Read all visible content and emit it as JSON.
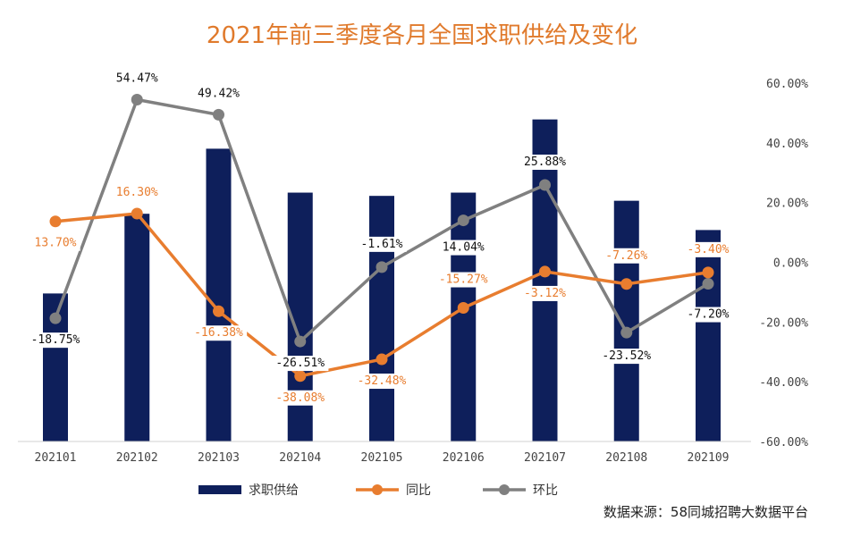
{
  "chart_data": {
    "type": "bar+line",
    "title": "2021年前三季度各月全国求职供给及变化",
    "categories": [
      "202101",
      "202102",
      "202103",
      "202104",
      "202105",
      "202106",
      "202107",
      "202108",
      "202109"
    ],
    "bar_series": {
      "name": "求职供给",
      "color": "#0e1f5b",
      "values": [
        0.455,
        0.7,
        0.9,
        0.765,
        0.755,
        0.765,
        0.99,
        0.74,
        0.65
      ]
    },
    "line_series": [
      {
        "name": "同比",
        "color": "#e87d2f",
        "values": [
          13.7,
          16.3,
          -16.38,
          -38.08,
          -32.48,
          -15.27,
          -3.12,
          -7.26,
          -3.4
        ],
        "labels": [
          "13.70%",
          "16.30%",
          "-16.38%",
          "-38.08%",
          "-32.48%",
          "-15.27%",
          "-3.12%",
          "-7.26%",
          "-3.40%"
        ]
      },
      {
        "name": "环比",
        "color": "#808080",
        "values": [
          -18.75,
          54.47,
          49.42,
          -26.51,
          -1.61,
          14.04,
          25.88,
          -23.52,
          -7.2
        ],
        "labels": [
          "-18.75%",
          "54.47%",
          "49.42%",
          "-26.51%",
          "-1.61%",
          "14.04%",
          "25.88%",
          "-23.52%",
          "-7.20%"
        ]
      }
    ],
    "y_right": {
      "ylim": [
        -60,
        60
      ],
      "ticks": [
        60,
        40,
        20,
        0,
        -20,
        -40,
        -60
      ],
      "tick_labels": [
        "60.00%",
        "40.00%",
        "20.00%",
        "0.00%",
        "-20.00%",
        "-40.00%",
        "-60.00%"
      ]
    },
    "legend_position": "bottom",
    "grid": false
  },
  "source_note": "数据来源：58同城招聘大数据平台"
}
